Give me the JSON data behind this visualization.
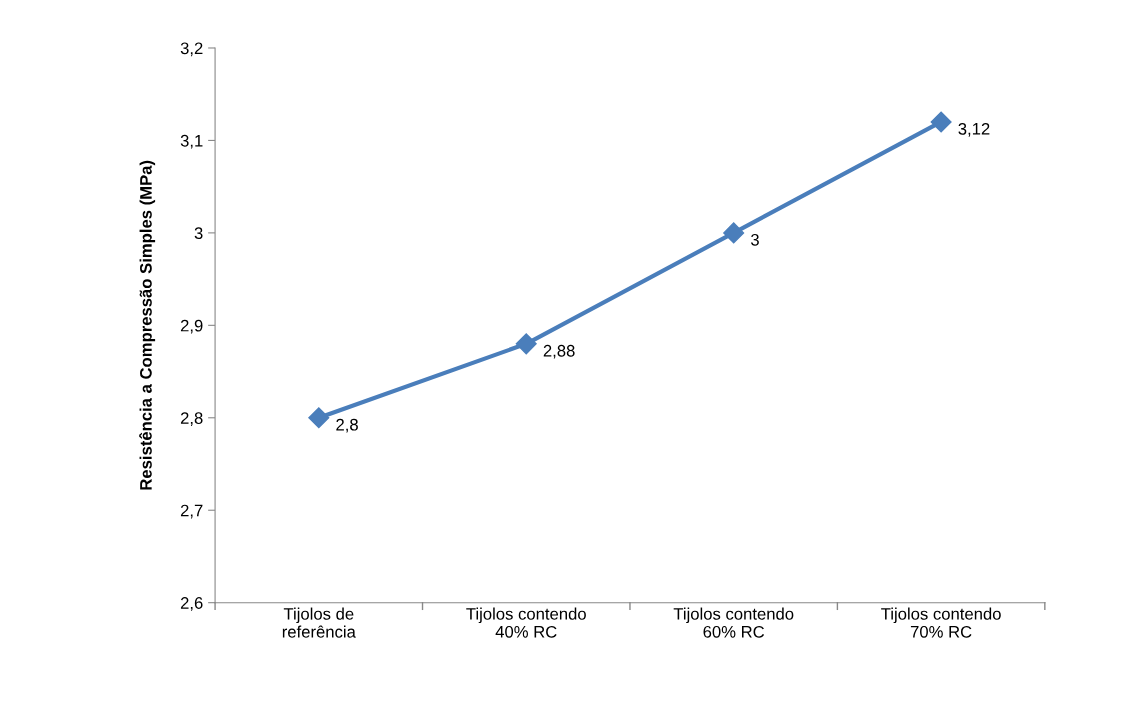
{
  "chart_data": {
    "type": "line",
    "ylabel": "Resistência a Compressão Simples (MPa)",
    "categories": [
      "Tijolos de\nreferência",
      "Tijolos contendo\n40% RC",
      "Tijolos contendo\n60% RC",
      "Tijolos contendo\n70% RC"
    ],
    "series": [
      {
        "color": "#4a7ebb",
        "values": [
          2.8,
          2.88,
          3,
          3.12
        ],
        "value_labels": [
          "2,8",
          "2,88",
          "3",
          "3,12"
        ]
      }
    ],
    "ylim": [
      2.6,
      3.2
    ],
    "yticks": [
      {
        "value": 2.6,
        "label": "2,6"
      },
      {
        "value": 2.7,
        "label": "2,7"
      },
      {
        "value": 2.8,
        "label": "2,8"
      },
      {
        "value": 2.9,
        "label": "2,9"
      },
      {
        "value": 3,
        "label": "3"
      },
      {
        "value": 3.1,
        "label": "3,1"
      },
      {
        "value": 3.2,
        "label": "3,2"
      }
    ],
    "marker": "diamond",
    "line_style": "solid",
    "grid": false,
    "legend": false
  }
}
